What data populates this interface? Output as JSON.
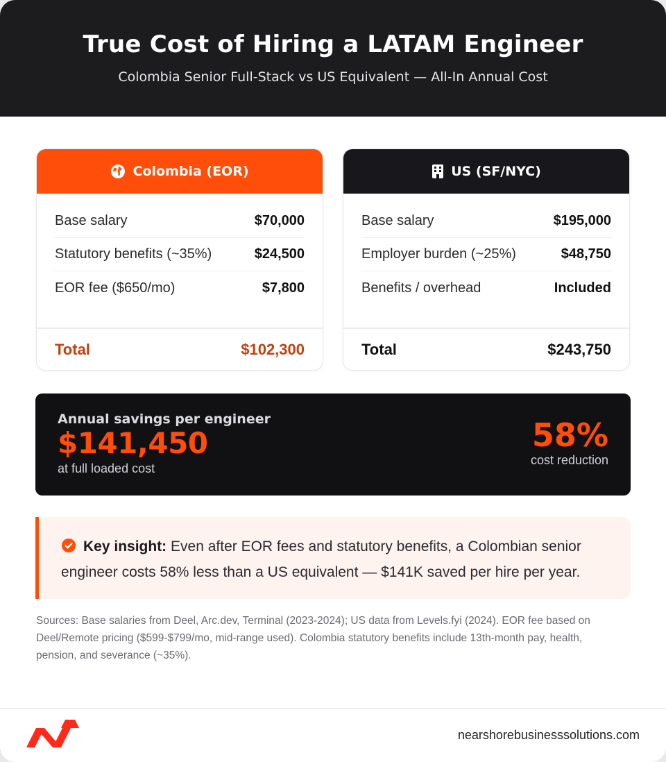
{
  "header": {
    "title": "True Cost of Hiring a LATAM Engineer",
    "subtitle": "Colombia Senior Full-Stack vs US Equivalent — All-In Annual Cost"
  },
  "colombia": {
    "title": "Colombia (EOR)",
    "icon": "globe-icon",
    "color": "#ff4d0a",
    "rows": [
      {
        "label": "Base salary",
        "value": "$70,000"
      },
      {
        "label": "Statutory benefits (~35%)",
        "value": "$24,500"
      },
      {
        "label": "EOR fee ($650/mo)",
        "value": "$7,800"
      }
    ],
    "total_label": "Total",
    "total_value": "$102,300"
  },
  "us": {
    "title": "US (SF/NYC)",
    "icon": "building-icon",
    "color": "#18171b",
    "rows": [
      {
        "label": "Base salary",
        "value": "$195,000"
      },
      {
        "label": "Employer burden (~25%)",
        "value": "$48,750"
      },
      {
        "label": "Benefits / overhead",
        "value": "Included"
      }
    ],
    "total_label": "Total",
    "total_value": "$243,750"
  },
  "savings": {
    "label": "Annual savings per engineer",
    "amount": "$141,450",
    "note": "at full loaded cost",
    "percent": "58%",
    "percent_label": "cost reduction"
  },
  "insight": {
    "lead": "Key insight:",
    "text": " Even after EOR fees and statutory benefits, a Colombian senior engineer costs 58% less than a US equivalent — $141K saved per hire per year."
  },
  "sources": "Sources: Base salaries from Deel, Arc.dev, Terminal (2023-2024); US data from Levels.fyi (2024). EOR fee based on Deel/Remote pricing ($599-$799/mo, mid-range used). Colombia statutory benefits include 13th-month pay, health, pension, and severance (~35%).",
  "footer": {
    "logo": "nearshore-logo",
    "domain": "nearshorebusinesssolutions.com"
  },
  "colors": {
    "accent": "#ff4d0a",
    "dark": "#1c1b1e"
  }
}
